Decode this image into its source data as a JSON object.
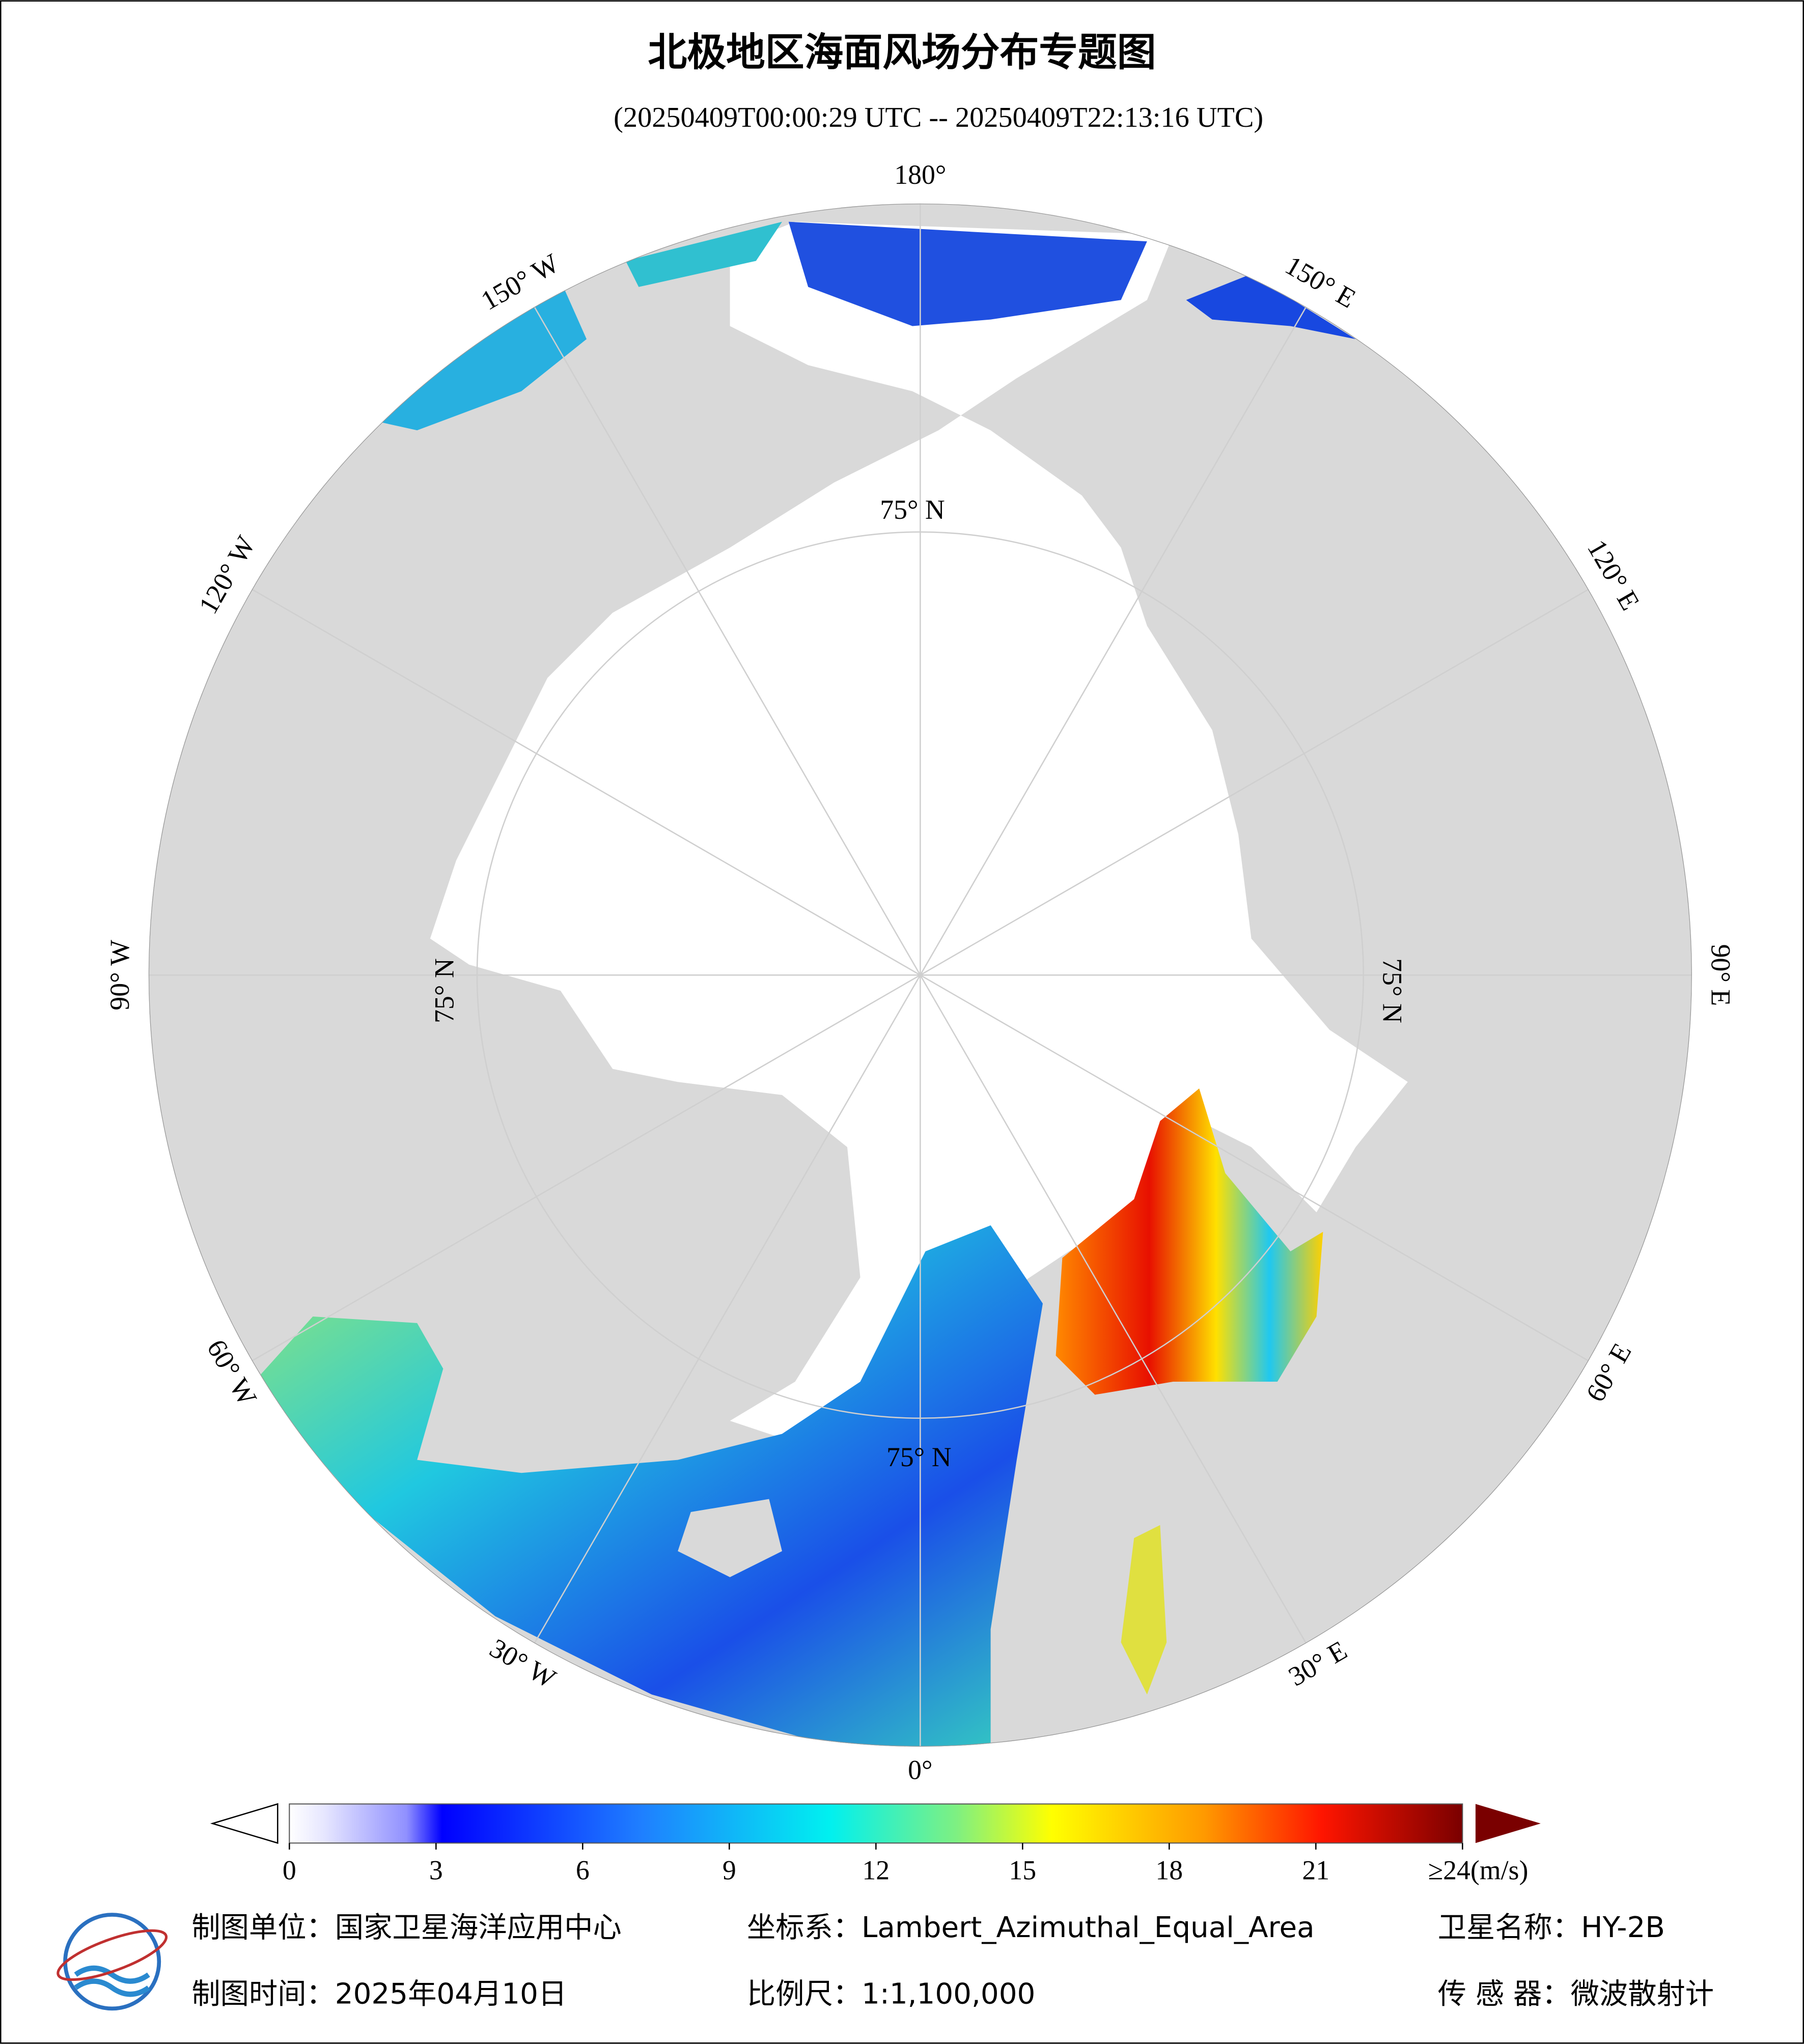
{
  "title": "北极地区海面风场分布专题图",
  "subtitle": "(20250409T00:00:29 UTC -- 20250409T22:13:16 UTC)",
  "longitude_labels": [
    "180°",
    "150° E",
    "120° E",
    "90° E",
    "60° E",
    "30° E",
    "0°",
    "30° W",
    "60° W",
    "90° W",
    "120° W",
    "150° W"
  ],
  "latitude_labels": [
    "75° N",
    "75° N",
    "75° N",
    "75° N"
  ],
  "colorbar": {
    "range": [
      0,
      24
    ],
    "ticks": [
      0,
      3,
      6,
      9,
      12,
      15,
      18,
      21,
      {
        "value": 24,
        "label": "≥24(m/s)"
      }
    ]
  },
  "footer": {
    "maker": "制图单位：国家卫星海洋应用中心",
    "crs": "坐标系：Lambert_Azimuthal_Equal_Area",
    "satellite": "卫星名称：HY-2B",
    "date": "制图时间：2025年04月10日",
    "scale": "比例尺：1:1,100,000",
    "sensor": "传 感 器：微波散射计"
  }
}
